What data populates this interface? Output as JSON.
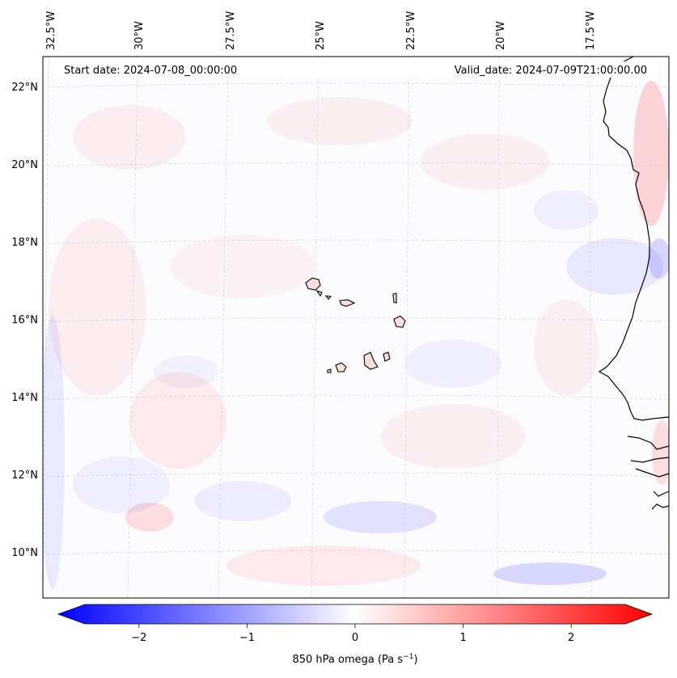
{
  "header": {
    "start_label": "Start date: 2024-07-08_00:00:00",
    "valid_label": "Valid_date: 2024-07-09T21:00:00.00"
  },
  "map": {
    "lon_labels": [
      "32.5°W",
      "30°W",
      "27.5°W",
      "25°W",
      "22.5°W",
      "20°W",
      "17.5°W"
    ],
    "lat_labels": [
      "22°N",
      "20°N",
      "18°N",
      "16°N",
      "14°N",
      "12°N",
      "10°N"
    ]
  },
  "colorbar": {
    "ticks": [
      "−2",
      "−1",
      "0",
      "1",
      "2"
    ],
    "tick_values": [
      -2,
      -1,
      0,
      1,
      2
    ],
    "range": [
      -2.5,
      2.5
    ],
    "label": "850 hPa omega (Pa s",
    "label_sup": "−1",
    "label_close": ")"
  },
  "colors": {
    "negative": "#0000ff",
    "neutral": "#ffffff",
    "positive": "#ff0000"
  }
}
